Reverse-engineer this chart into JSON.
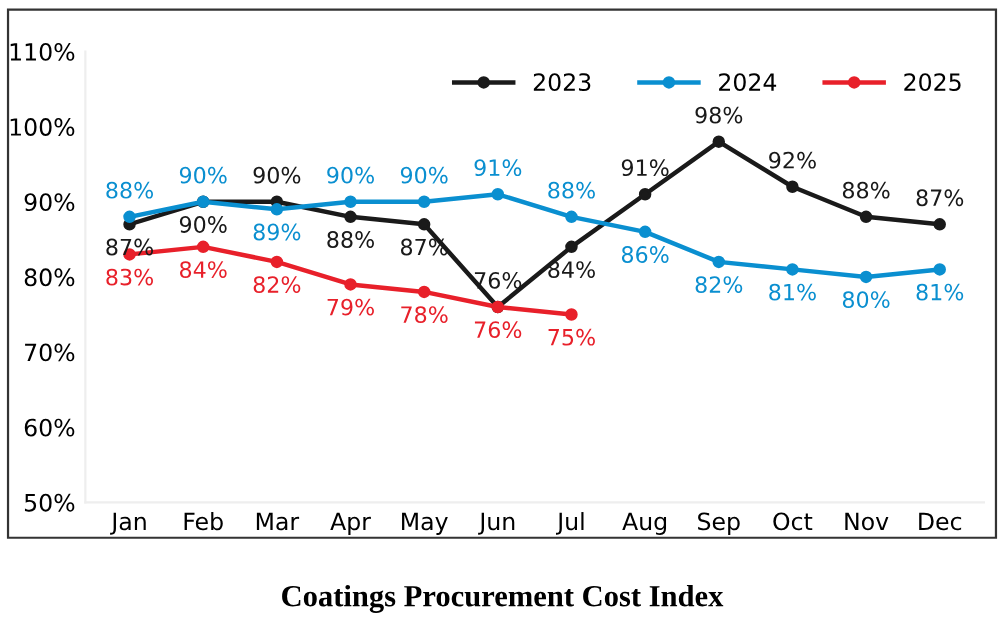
{
  "chart_data": {
    "type": "line",
    "title": "Coatings Procurement Cost Index",
    "categories": [
      "Jan",
      "Feb",
      "Mar",
      "Apr",
      "May",
      "Jun",
      "Jul",
      "Aug",
      "Sep",
      "Oct",
      "Nov",
      "Dec"
    ],
    "series": [
      {
        "name": "2023",
        "color": "#1a1a1a",
        "values": [
          87,
          90,
          90,
          88,
          87,
          76,
          84,
          91,
          98,
          92,
          88,
          87
        ],
        "value_labels": [
          "87%",
          "90%",
          "90%",
          "88%",
          "87%",
          "76%",
          "84%",
          "91%",
          "98%",
          "92%",
          "88%",
          "87%"
        ]
      },
      {
        "name": "2024",
        "color": "#0a8fd0",
        "values": [
          88,
          90,
          89,
          90,
          90,
          91,
          88,
          86,
          82,
          81,
          80,
          81
        ],
        "value_labels": [
          "88%",
          "90%",
          "89%",
          "90%",
          "90%",
          "91%",
          "88%",
          "86%",
          "82%",
          "81%",
          "80%",
          "81%"
        ]
      },
      {
        "name": "2025",
        "color": "#e8202a",
        "values": [
          83,
          84,
          82,
          79,
          78,
          76,
          75,
          null,
          null,
          null,
          null,
          null
        ],
        "value_labels": [
          "83%",
          "84%",
          "82%",
          "79%",
          "78%",
          "76%",
          "75%",
          null,
          null,
          null,
          null,
          null
        ]
      }
    ],
    "ylim": [
      50,
      110
    ],
    "yticks": [
      {
        "value": 50,
        "label": "50%"
      },
      {
        "value": 60,
        "label": "60%"
      },
      {
        "value": 70,
        "label": "70%"
      },
      {
        "value": 80,
        "label": "80%"
      },
      {
        "value": 90,
        "label": "90%"
      },
      {
        "value": 100,
        "label": "100%"
      },
      {
        "value": 110,
        "label": "110%"
      }
    ],
    "grid": false,
    "legend": "top right",
    "marker": "circle",
    "line_style": "solid"
  }
}
